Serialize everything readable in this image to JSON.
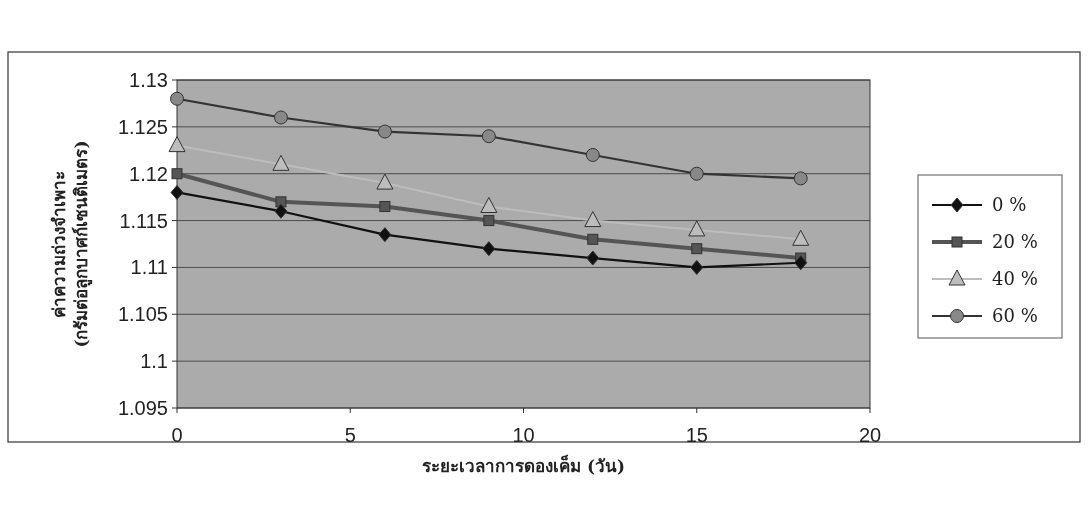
{
  "chart_data": {
    "type": "line",
    "xlabel": "ระยะเวลาการดองเค็ม (วัน)",
    "ylabel": "ค่าความถ่วงจำเพาะ\n(กรัมต่อลูกบาศก์เซนติเมตร)",
    "x": [
      0,
      3,
      6,
      9,
      12,
      15,
      18
    ],
    "series": [
      {
        "name": "0 %",
        "color": "#111111",
        "marker": "diamond",
        "values": [
          1.118,
          1.116,
          1.1135,
          1.112,
          1.111,
          1.11,
          1.1105
        ]
      },
      {
        "name": "20 %",
        "color": "#555555",
        "marker": "square",
        "values": [
          1.12,
          1.117,
          1.1165,
          1.115,
          1.113,
          1.112,
          1.111
        ]
      },
      {
        "name": "40 %",
        "color": "#bdbdbd",
        "marker": "triangle",
        "values": [
          1.123,
          1.121,
          1.119,
          1.1165,
          1.115,
          1.114,
          1.113
        ]
      },
      {
        "name": "60 %",
        "color": "#888888",
        "marker": "circle",
        "values": [
          1.128,
          1.126,
          1.1245,
          1.124,
          1.122,
          1.12,
          1.1195
        ]
      }
    ],
    "xlim": [
      0,
      20
    ],
    "xticks": [
      0,
      5,
      10,
      15,
      20
    ],
    "ylim": [
      1.095,
      1.13
    ],
    "yticks": [
      1.095,
      1.1,
      1.105,
      1.11,
      1.115,
      1.12,
      1.125,
      1.13
    ],
    "grid": "y",
    "legend": "right"
  }
}
